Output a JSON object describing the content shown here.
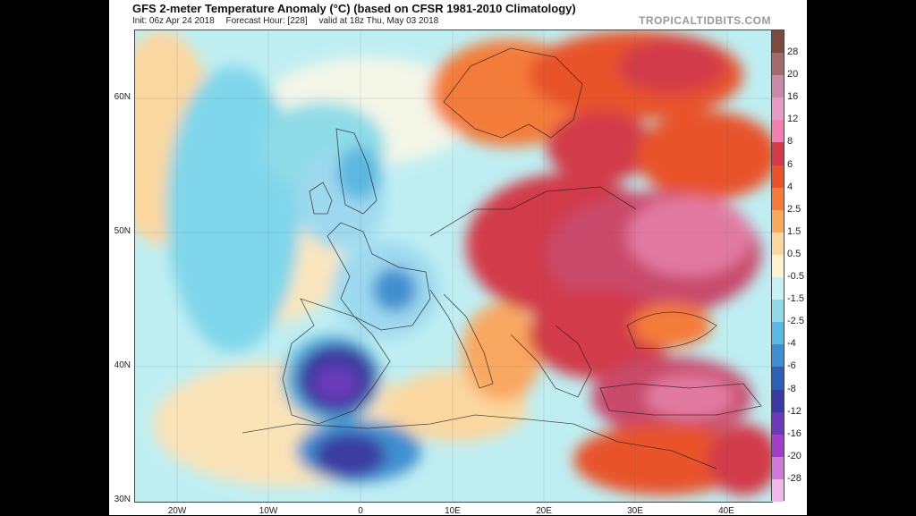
{
  "header": {
    "title": "GFS 2-meter Temperature Anomaly (°C) (based on CFSR 1981-2010 Climatology)",
    "init": "Init: 06z Apr 24 2018",
    "forecast_hour": "Forecast Hour: [228]",
    "valid": "valid at 18z Thu, May 03 2018",
    "brand": "TROPICALTIDBITS.COM"
  },
  "axes": {
    "lat_labels": [
      "60N",
      "50N",
      "40N",
      "30N"
    ],
    "lon_labels": [
      "20W",
      "10W",
      "0",
      "10E",
      "20E",
      "30E",
      "40E"
    ]
  },
  "colorbar": {
    "labels": [
      "28",
      "20",
      "16",
      "12",
      "8",
      "6",
      "4",
      "2.5",
      "1.5",
      "0.5",
      "-0.5",
      "-1.5",
      "-2.5",
      "-4",
      "-6",
      "-8",
      "-12",
      "-16",
      "-20",
      "-28"
    ],
    "colors": [
      "#7a4b3f",
      "#a36b6b",
      "#c98aa6",
      "#e59bc3",
      "#f27fae",
      "#d23a4a",
      "#e8532c",
      "#f47b3a",
      "#f9a862",
      "#fbd7a0",
      "#fdf3d3",
      "#c9f1f3",
      "#8fdbe8",
      "#5cb8e0",
      "#3f8fd0",
      "#2d5fb3",
      "#3a3aa0",
      "#6a3ab8",
      "#a13ec8",
      "#d07ad8",
      "#f0b8e6"
    ]
  },
  "colors": {
    "frame": "#000000",
    "ocean_anomaly": "#8fdbe8",
    "warm_anomaly": "#d23a4a",
    "cold_anomaly": "#3a3aa0"
  }
}
